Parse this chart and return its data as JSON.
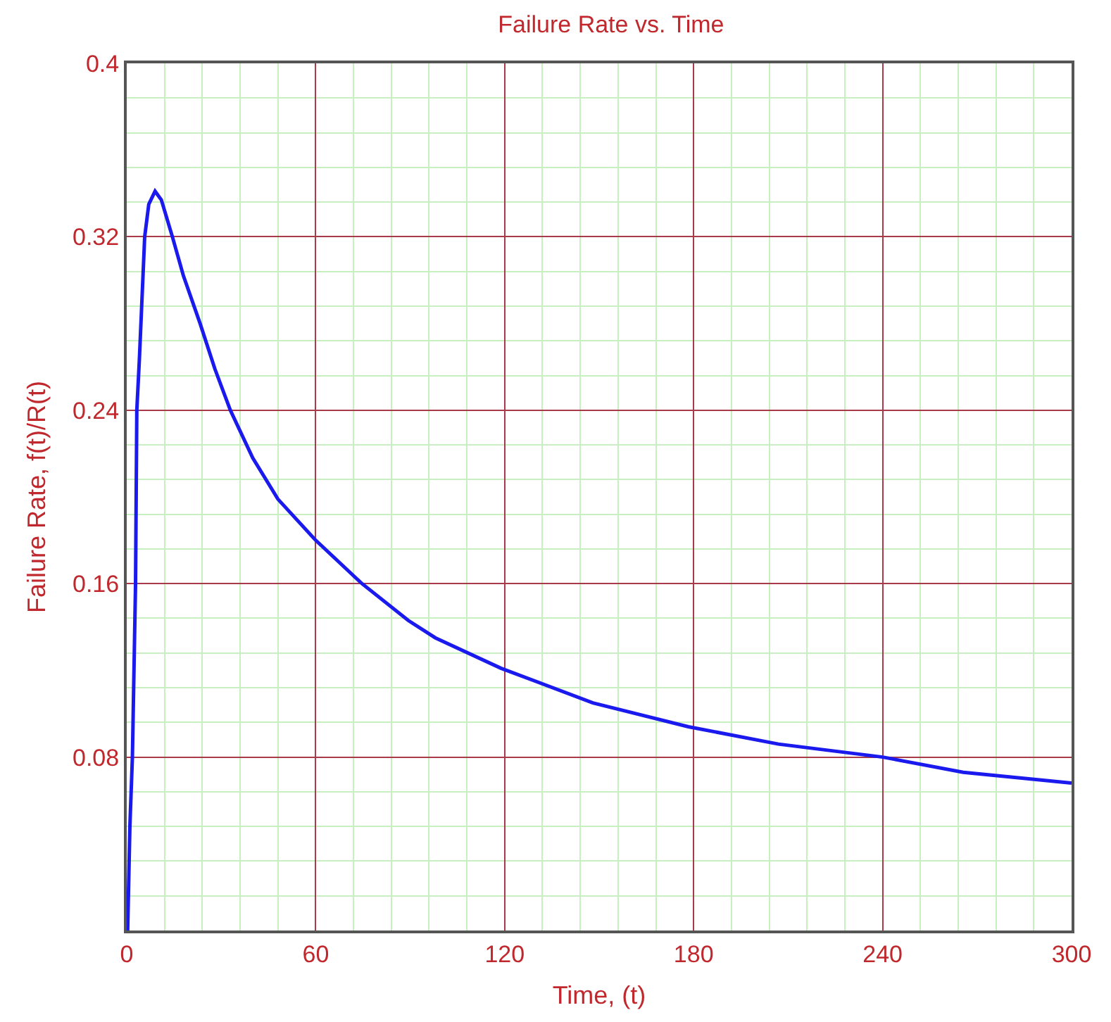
{
  "chart_data": {
    "type": "line",
    "title": "Failure Rate vs. Time",
    "xlabel": "Time, (t)",
    "ylabel": "Failure Rate, f(t)/R(t)",
    "series": [
      {
        "color": "#1a1aee",
        "x": [
          0.3,
          1,
          1.8,
          2.8,
          3.2,
          4,
          5.7,
          7,
          9,
          11,
          14.5,
          18,
          23.3,
          28,
          32.9,
          40,
          48,
          60,
          74.7,
          89.4,
          98,
          118.8,
          148,
          178.3,
          206.9,
          240,
          265.6,
          300
        ],
        "values": [
          0,
          0.048,
          0.08,
          0.16,
          0.24,
          0.263,
          0.32,
          0.335,
          0.341,
          0.337,
          0.32,
          0.302,
          0.28,
          0.259,
          0.24,
          0.218,
          0.199,
          0.18,
          0.16,
          0.143,
          0.135,
          0.121,
          0.105,
          0.094,
          0.086,
          0.08,
          0.073,
          0.068
        ]
      }
    ],
    "xlim": [
      0,
      300
    ],
    "xticks": [
      0,
      {
        "value": 12,
        "label": null
      },
      {
        "value": 24,
        "label": null
      },
      {
        "value": 36,
        "label": null
      },
      {
        "value": 48,
        "label": null
      },
      60,
      {
        "value": 72,
        "label": null
      },
      {
        "value": 84,
        "label": null
      },
      {
        "value": 96,
        "label": null
      },
      {
        "value": 108,
        "label": null
      },
      120,
      {
        "value": 132,
        "label": null
      },
      {
        "value": 144,
        "label": null
      },
      {
        "value": 156,
        "label": null
      },
      {
        "value": 168,
        "label": null
      },
      180,
      {
        "value": 192,
        "label": null
      },
      {
        "value": 204,
        "label": null
      },
      {
        "value": 216,
        "label": null
      },
      {
        "value": 228,
        "label": null
      },
      240,
      {
        "value": 252,
        "label": null
      },
      {
        "value": 264,
        "label": null
      },
      {
        "value": 276,
        "label": null
      },
      {
        "value": 288,
        "label": null
      },
      300
    ],
    "ylim": [
      0,
      0.4
    ],
    "yticks": [
      {
        "value": 0,
        "label": null
      },
      {
        "value": 0.016,
        "label": null
      },
      {
        "value": 0.032,
        "label": null
      },
      {
        "value": 0.048,
        "label": null
      },
      {
        "value": 0.064,
        "label": null
      },
      0.08,
      {
        "value": 0.096,
        "label": null
      },
      {
        "value": 0.112,
        "label": null
      },
      {
        "value": 0.128,
        "label": null
      },
      {
        "value": 0.144,
        "label": null
      },
      0.16,
      {
        "value": 0.176,
        "label": null
      },
      {
        "value": 0.192,
        "label": null
      },
      {
        "value": 0.208,
        "label": null
      },
      {
        "value": 0.224,
        "label": null
      },
      0.24,
      {
        "value": 0.256,
        "label": null
      },
      {
        "value": 0.272,
        "label": null
      },
      {
        "value": 0.288,
        "label": null
      },
      {
        "value": 0.304,
        "label": null
      },
      0.32,
      {
        "value": 0.336,
        "label": null
      },
      {
        "value": 0.352,
        "label": null
      },
      {
        "value": 0.368,
        "label": null
      },
      {
        "value": 0.384,
        "label": null
      },
      0.4
    ],
    "grid": true,
    "marker": "none",
    "line_style": "solid"
  }
}
